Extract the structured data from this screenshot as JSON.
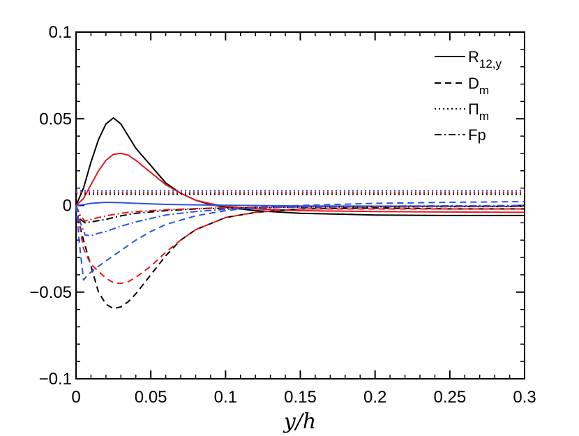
{
  "chart_data": {
    "type": "line",
    "title": "",
    "xlabel": "y/h",
    "ylabel": "",
    "xlim": [
      0,
      0.3
    ],
    "ylim": [
      -0.1,
      0.1
    ],
    "x_ticks": [
      0,
      0.05,
      0.1,
      0.15,
      0.2,
      0.25,
      0.3
    ],
    "x_tick_labels": [
      "0",
      "0.05",
      "0.1",
      "0.15",
      "0.2",
      "0.25",
      "0.3"
    ],
    "y_ticks": [
      -0.1,
      -0.05,
      0,
      0.05,
      0.1
    ],
    "y_tick_labels": [
      "−0.1",
      "−0.05",
      "0",
      "0.05",
      "0.1"
    ],
    "legend": {
      "position": "top-right",
      "entries": [
        {
          "base": "R",
          "sub": "12,y",
          "style": "solid"
        },
        {
          "base": "D",
          "sub": "m",
          "style": "dashed"
        },
        {
          "base": "Π",
          "sub": "m",
          "style": "dotted"
        },
        {
          "base": "Fp",
          "sub": "",
          "style": "dashdot"
        }
      ]
    },
    "colors": {
      "black": "#000000",
      "red": "#e4191c",
      "blue": "#2a54e0"
    },
    "series": [
      {
        "name": "R_12,y (black)",
        "color": "#000000",
        "style": "solid",
        "x": [
          0,
          0.005,
          0.01,
          0.015,
          0.02,
          0.025,
          0.03,
          0.035,
          0.04,
          0.05,
          0.06,
          0.07,
          0.08,
          0.09,
          0.1,
          0.12,
          0.15,
          0.2,
          0.25,
          0.3
        ],
        "y": [
          0,
          0.01,
          0.025,
          0.038,
          0.047,
          0.0505,
          0.047,
          0.04,
          0.033,
          0.023,
          0.013,
          0.007,
          0.003,
          0.0005,
          -0.001,
          -0.003,
          -0.0045,
          -0.0055,
          -0.0058,
          -0.0058
        ]
      },
      {
        "name": "R_12,y (red)",
        "color": "#e4191c",
        "style": "solid",
        "x": [
          0,
          0.005,
          0.01,
          0.015,
          0.02,
          0.025,
          0.03,
          0.035,
          0.04,
          0.05,
          0.06,
          0.07,
          0.08,
          0.09,
          0.1,
          0.12,
          0.15,
          0.2,
          0.25,
          0.3
        ],
        "y": [
          0,
          0.004,
          0.012,
          0.02,
          0.026,
          0.0295,
          0.03,
          0.029,
          0.026,
          0.019,
          0.012,
          0.007,
          0.003,
          0.001,
          -0.0005,
          -0.002,
          -0.003,
          -0.0035,
          -0.0038,
          -0.004
        ]
      },
      {
        "name": "R_12,y (blue)",
        "color": "#2a54e0",
        "style": "solid",
        "x": [
          0,
          0.005,
          0.01,
          0.02,
          0.03,
          0.04,
          0.06,
          0.1,
          0.15,
          0.2,
          0.3
        ],
        "y": [
          0,
          0.0005,
          0.0012,
          0.0018,
          0.0016,
          0.0012,
          0.0006,
          0.0001,
          -0.0003,
          -0.0004,
          -0.0005
        ]
      },
      {
        "name": "D_m (black)",
        "color": "#000000",
        "style": "dashed",
        "x": [
          0,
          0.002,
          0.005,
          0.01,
          0.015,
          0.02,
          0.025,
          0.03,
          0.035,
          0.04,
          0.05,
          0.06,
          0.07,
          0.08,
          0.1,
          0.12,
          0.15,
          0.2,
          0.25,
          0.3
        ],
        "y": [
          0,
          -0.01,
          -0.02,
          -0.035,
          -0.05,
          -0.057,
          -0.0595,
          -0.0585,
          -0.0555,
          -0.051,
          -0.04,
          -0.029,
          -0.02,
          -0.014,
          -0.007,
          -0.004,
          -0.002,
          -0.0015,
          -0.002,
          -0.002
        ]
      },
      {
        "name": "D_m (red)",
        "color": "#e4191c",
        "style": "dashed",
        "x": [
          0,
          0.002,
          0.005,
          0.01,
          0.015,
          0.02,
          0.025,
          0.03,
          0.035,
          0.04,
          0.05,
          0.06,
          0.07,
          0.08,
          0.1,
          0.12,
          0.15,
          0.2,
          0.25,
          0.3
        ],
        "y": [
          0,
          -0.01,
          -0.025,
          -0.034,
          -0.038,
          -0.042,
          -0.0445,
          -0.045,
          -0.044,
          -0.0415,
          -0.035,
          -0.027,
          -0.02,
          -0.014,
          -0.007,
          -0.004,
          -0.002,
          -0.002,
          -0.002,
          -0.002
        ]
      },
      {
        "name": "D_m (blue)",
        "color": "#2a54e0",
        "style": "dashed",
        "x": [
          0,
          0.002,
          0.005,
          0.008,
          0.012,
          0.02,
          0.03,
          0.04,
          0.05,
          0.06,
          0.08,
          0.1,
          0.12,
          0.15,
          0.2,
          0.25,
          0.3
        ],
        "y": [
          0,
          -0.02,
          -0.043,
          -0.04,
          -0.037,
          -0.032,
          -0.026,
          -0.02,
          -0.015,
          -0.011,
          -0.006,
          -0.003,
          -0.001,
          0,
          0.0012,
          0.0018,
          0.0022
        ]
      },
      {
        "name": "Pi_m (black)",
        "color": "#000000",
        "style": "dotted",
        "x": [
          0,
          0.3
        ],
        "y": [
          0.0065,
          0.0065
        ]
      },
      {
        "name": "Pi_m (red)",
        "color": "#e4191c",
        "style": "dotted",
        "x": [
          0,
          0.3
        ],
        "y": [
          0.0075,
          0.0075
        ]
      },
      {
        "name": "Pi_m (blue)",
        "color": "#2a54e0",
        "style": "dotted",
        "x": [
          0,
          0.3
        ],
        "y": [
          0.0085,
          0.0085
        ]
      },
      {
        "name": "Fp (black)",
        "color": "#000000",
        "style": "dashdot",
        "x": [
          0,
          0.003,
          0.006,
          0.01,
          0.02,
          0.03,
          0.04,
          0.06,
          0.08,
          0.1,
          0.15,
          0.2,
          0.25,
          0.3
        ],
        "y": [
          0,
          -0.008,
          -0.01,
          -0.0095,
          -0.008,
          -0.006,
          -0.0045,
          -0.003,
          -0.002,
          -0.0015,
          -0.001,
          -0.0008,
          -0.0007,
          -0.0006
        ]
      },
      {
        "name": "Fp (red)",
        "color": "#e4191c",
        "style": "dashdot",
        "x": [
          0,
          0.003,
          0.006,
          0.01,
          0.02,
          0.03,
          0.04,
          0.06,
          0.08,
          0.1,
          0.15,
          0.2,
          0.25,
          0.3
        ],
        "y": [
          0,
          -0.006,
          -0.009,
          -0.008,
          -0.006,
          -0.0045,
          -0.0035,
          -0.0025,
          -0.0018,
          -0.0013,
          -0.0009,
          -0.0007,
          -0.0006,
          -0.0005
        ]
      },
      {
        "name": "Fp (blue)",
        "color": "#2a54e0",
        "style": "dashdot",
        "x": [
          0,
          0.003,
          0.006,
          0.01,
          0.015,
          0.02,
          0.03,
          0.04,
          0.05,
          0.06,
          0.08,
          0.1,
          0.15,
          0.2,
          0.25,
          0.3
        ],
        "y": [
          0,
          -0.01,
          -0.017,
          -0.0175,
          -0.016,
          -0.015,
          -0.012,
          -0.0095,
          -0.0075,
          -0.0055,
          -0.0035,
          -0.0022,
          -0.0008,
          -0.0004,
          -0.0002,
          0
        ]
      }
    ]
  }
}
